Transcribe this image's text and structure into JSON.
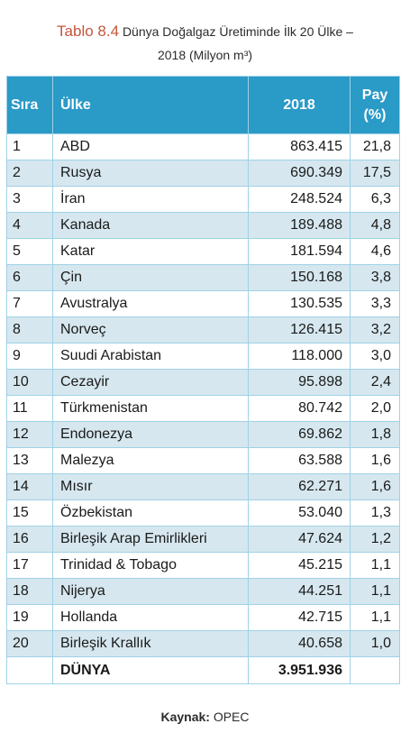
{
  "caption": {
    "number": "Tablo 8.4",
    "title_line1": "Dünya Doğalgaz Üretiminde İlk 20 Ülke –",
    "title_line2": "2018 (Milyon m³)"
  },
  "table": {
    "headers": {
      "rank": "Sıra",
      "country": "Ülke",
      "year": "2018",
      "share_line1": "Pay",
      "share_line2": "(%)"
    },
    "rows": [
      {
        "rank": "1",
        "country": "ABD",
        "value": "863.415",
        "share": "21,8"
      },
      {
        "rank": "2",
        "country": "Rusya",
        "value": "690.349",
        "share": "17,5"
      },
      {
        "rank": "3",
        "country": "İran",
        "value": "248.524",
        "share": "6,3"
      },
      {
        "rank": "4",
        "country": "Kanada",
        "value": "189.488",
        "share": "4,8"
      },
      {
        "rank": "5",
        "country": "Katar",
        "value": "181.594",
        "share": "4,6"
      },
      {
        "rank": "6",
        "country": "Çin",
        "value": "150.168",
        "share": "3,8"
      },
      {
        "rank": "7",
        "country": "Avustralya",
        "value": "130.535",
        "share": "3,3"
      },
      {
        "rank": "8",
        "country": "Norveç",
        "value": "126.415",
        "share": "3,2"
      },
      {
        "rank": "9",
        "country": "Suudi Arabistan",
        "value": "118.000",
        "share": "3,0"
      },
      {
        "rank": "10",
        "country": "Cezayir",
        "value": "95.898",
        "share": "2,4"
      },
      {
        "rank": "11",
        "country": "Türkmenistan",
        "value": "80.742",
        "share": "2,0"
      },
      {
        "rank": "12",
        "country": "Endonezya",
        "value": "69.862",
        "share": "1,8"
      },
      {
        "rank": "13",
        "country": "Malezya",
        "value": "63.588",
        "share": "1,6"
      },
      {
        "rank": "14",
        "country": "Mısır",
        "value": "62.271",
        "share": "1,6"
      },
      {
        "rank": "15",
        "country": "Özbekistan",
        "value": "53.040",
        "share": "1,3"
      },
      {
        "rank": "16",
        "country": "Birleşik Arap Emirlikleri",
        "value": "47.624",
        "share": "1,2"
      },
      {
        "rank": "17",
        "country": "Trinidad & Tobago",
        "value": "45.215",
        "share": "1,1"
      },
      {
        "rank": "18",
        "country": "Nijerya",
        "value": "44.251",
        "share": "1,1"
      },
      {
        "rank": "19",
        "country": "Hollanda",
        "value": "42.715",
        "share": "1,1"
      },
      {
        "rank": "20",
        "country": "Birleşik Krallık",
        "value": "40.658",
        "share": "1,0"
      }
    ],
    "total": {
      "label": "DÜNYA",
      "value": "3.951.936"
    }
  },
  "source": {
    "label": "Kaynak:",
    "value": "OPEC"
  },
  "colors": {
    "header_bg": "#2a9ac7",
    "alt_row_bg": "#d6e7ef",
    "border": "#9fd2e6",
    "caption_number": "#c4573a"
  }
}
